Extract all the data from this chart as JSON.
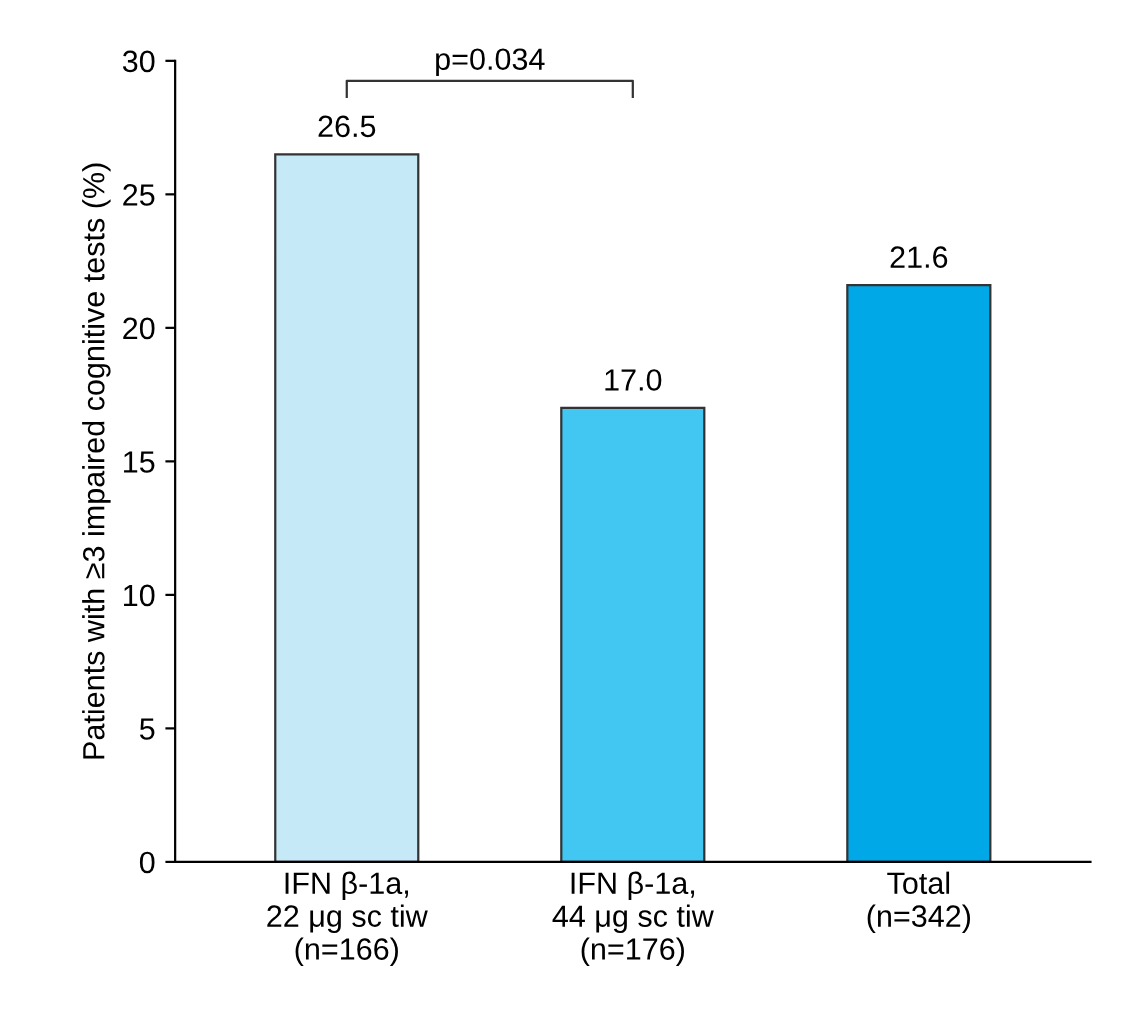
{
  "chart_data": {
    "type": "bar",
    "ylabel": "Patients with ≥3 impaired cognitive tests (%)",
    "categories": [
      "IFN β-1a,\n22 μg sc tiw\n(n=166)",
      "IFN β-1a,\n44 μg sc tiw\n(n=176)",
      "Total\n(n=342)"
    ],
    "values": [
      26.5,
      17.0,
      21.6
    ],
    "colors": [
      "#c6e9f8",
      "#42c6f2",
      "#00a8e8"
    ],
    "value_labels": [
      "26.5",
      "17.0",
      "21.6"
    ],
    "ylim": [
      0,
      30
    ],
    "yticks": [
      0,
      5,
      10,
      15,
      20,
      25,
      30
    ],
    "annotations": [
      "p=0.034"
    ],
    "grid": false,
    "legend": false
  }
}
